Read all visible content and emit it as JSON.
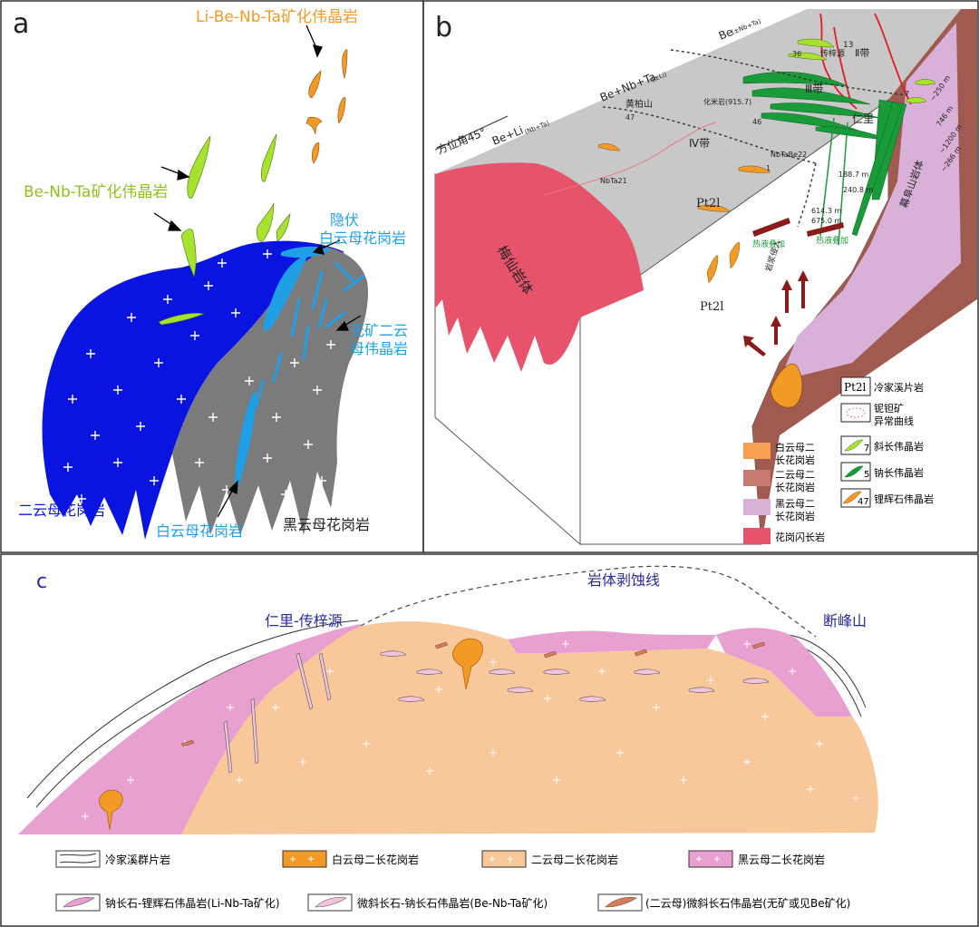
{
  "panel_a": {
    "letter": "a",
    "ore_title": "Li-Be-Nb-Ta矿化伟晶岩",
    "beta_label": "Be-Nb-Ta矿化伟晶岩",
    "concealed_l1": "隐伏",
    "concealed_l2": "白云母花岗岩",
    "barren_l1": "无矿二云",
    "barren_l2": "母伟晶岩",
    "two_mica": "二云母花岗岩",
    "muscovite": "白云母花岗岩",
    "biotite": "黑云母花岗岩"
  },
  "panel_b": {
    "letter": "b",
    "azimuth": "方位角45°",
    "zone_beli": "Be+Li",
    "zone_beli_sub": "(Nb+Ta)",
    "zone_benbta": "Be+Nb+Ta",
    "zone_benbta_sub": "(±Li)",
    "zone_be": "Be",
    "zone_be_sub": "(±Nb+Ta)",
    "huangbaishan": "黄柏山",
    "huamiyan": "化米岩(915.7)",
    "zone4": "Ⅳ带",
    "zone3": "Ⅲ带",
    "zone2": "Ⅱ带",
    "zone2_num": "13",
    "chuanzy": "传梓源",
    "renli": "仁里",
    "nbtabe": "NbTaBe22",
    "nbta21": "NbTa21",
    "pt_top": "Pt2l",
    "pt_front": "Pt2l",
    "meixian": "梅仙岩体",
    "mufu": "幕阜山岩体",
    "num_47": "47",
    "num_46": "46",
    "num_36": "36",
    "num_7": "7",
    "num_1": "1",
    "depth_1": "188.7 m",
    "depth_2": "240.8 m",
    "depth_3": "614.3 m",
    "depth_4": "675.0 m",
    "depth_r1": "~250 m",
    "depth_r2": "746 m",
    "depth_r3": "~1200 m",
    "depth_r4": "~266 m",
    "hydro_1": "热液叠加",
    "hydro_2": "热液叠加",
    "intrusion": "岩浆侵入",
    "legend": [
      {
        "code": "Pt2l",
        "text": "冷家溪片岩"
      },
      {
        "text": "铌钽矿异常曲线",
        "line1": "铌钽矿",
        "line2": "异常曲线"
      },
      {
        "num": "7",
        "text": "斜长伟晶岩"
      },
      {
        "num": "5",
        "text": "钠长伟晶岩"
      },
      {
        "num": "47",
        "text": "锂辉石伟晶岩"
      }
    ],
    "rock_legend": [
      {
        "line1": "白云母二",
        "line2": "长花岗岩",
        "color": "#f7a04f"
      },
      {
        "line1": "二云母二",
        "line2": "长花岗岩",
        "color": "#c97a6e"
      },
      {
        "line1": "黑云母二",
        "line2": "长花岗岩",
        "color": "#d9b3d6"
      },
      {
        "line1": "花岗闪长岩",
        "line2": "",
        "color": "#e6536a"
      }
    ]
  },
  "panel_c": {
    "letter": "c",
    "erosion": "岩体剥蚀线",
    "renli": "仁里-传梓源",
    "duanfeng": "断峰山",
    "legend": [
      {
        "text": "冷家溪群片岩"
      },
      {
        "text": "白云母二长花岗岩"
      },
      {
        "text": "二云母二长花岗岩"
      },
      {
        "text": "黑云母二长花岗岩"
      },
      {
        "text": "钠长石-锂辉石伟晶岩(Li-Nb-Ta矿化)"
      },
      {
        "text": "微斜长石-钠长石伟晶岩(Be-Nb-Ta矿化)"
      },
      {
        "text": "(二云母)微斜长石伟晶岩(无矿或见Be矿化)"
      }
    ]
  },
  "colors": {
    "blue_granite": "#0a14e0",
    "grey_granite": "#7b7b7b",
    "light_blue": "#1fa0e6",
    "green_peg": "#a6e22e",
    "orange_peg": "#f29a26",
    "grey_top": "#c8c8c8",
    "pink_block": "#e6536a",
    "brown_block": "#a05a50",
    "lilac": "#d8b0d8",
    "peach": "#f8c89a",
    "pink_c": "#e8a0d0"
  }
}
